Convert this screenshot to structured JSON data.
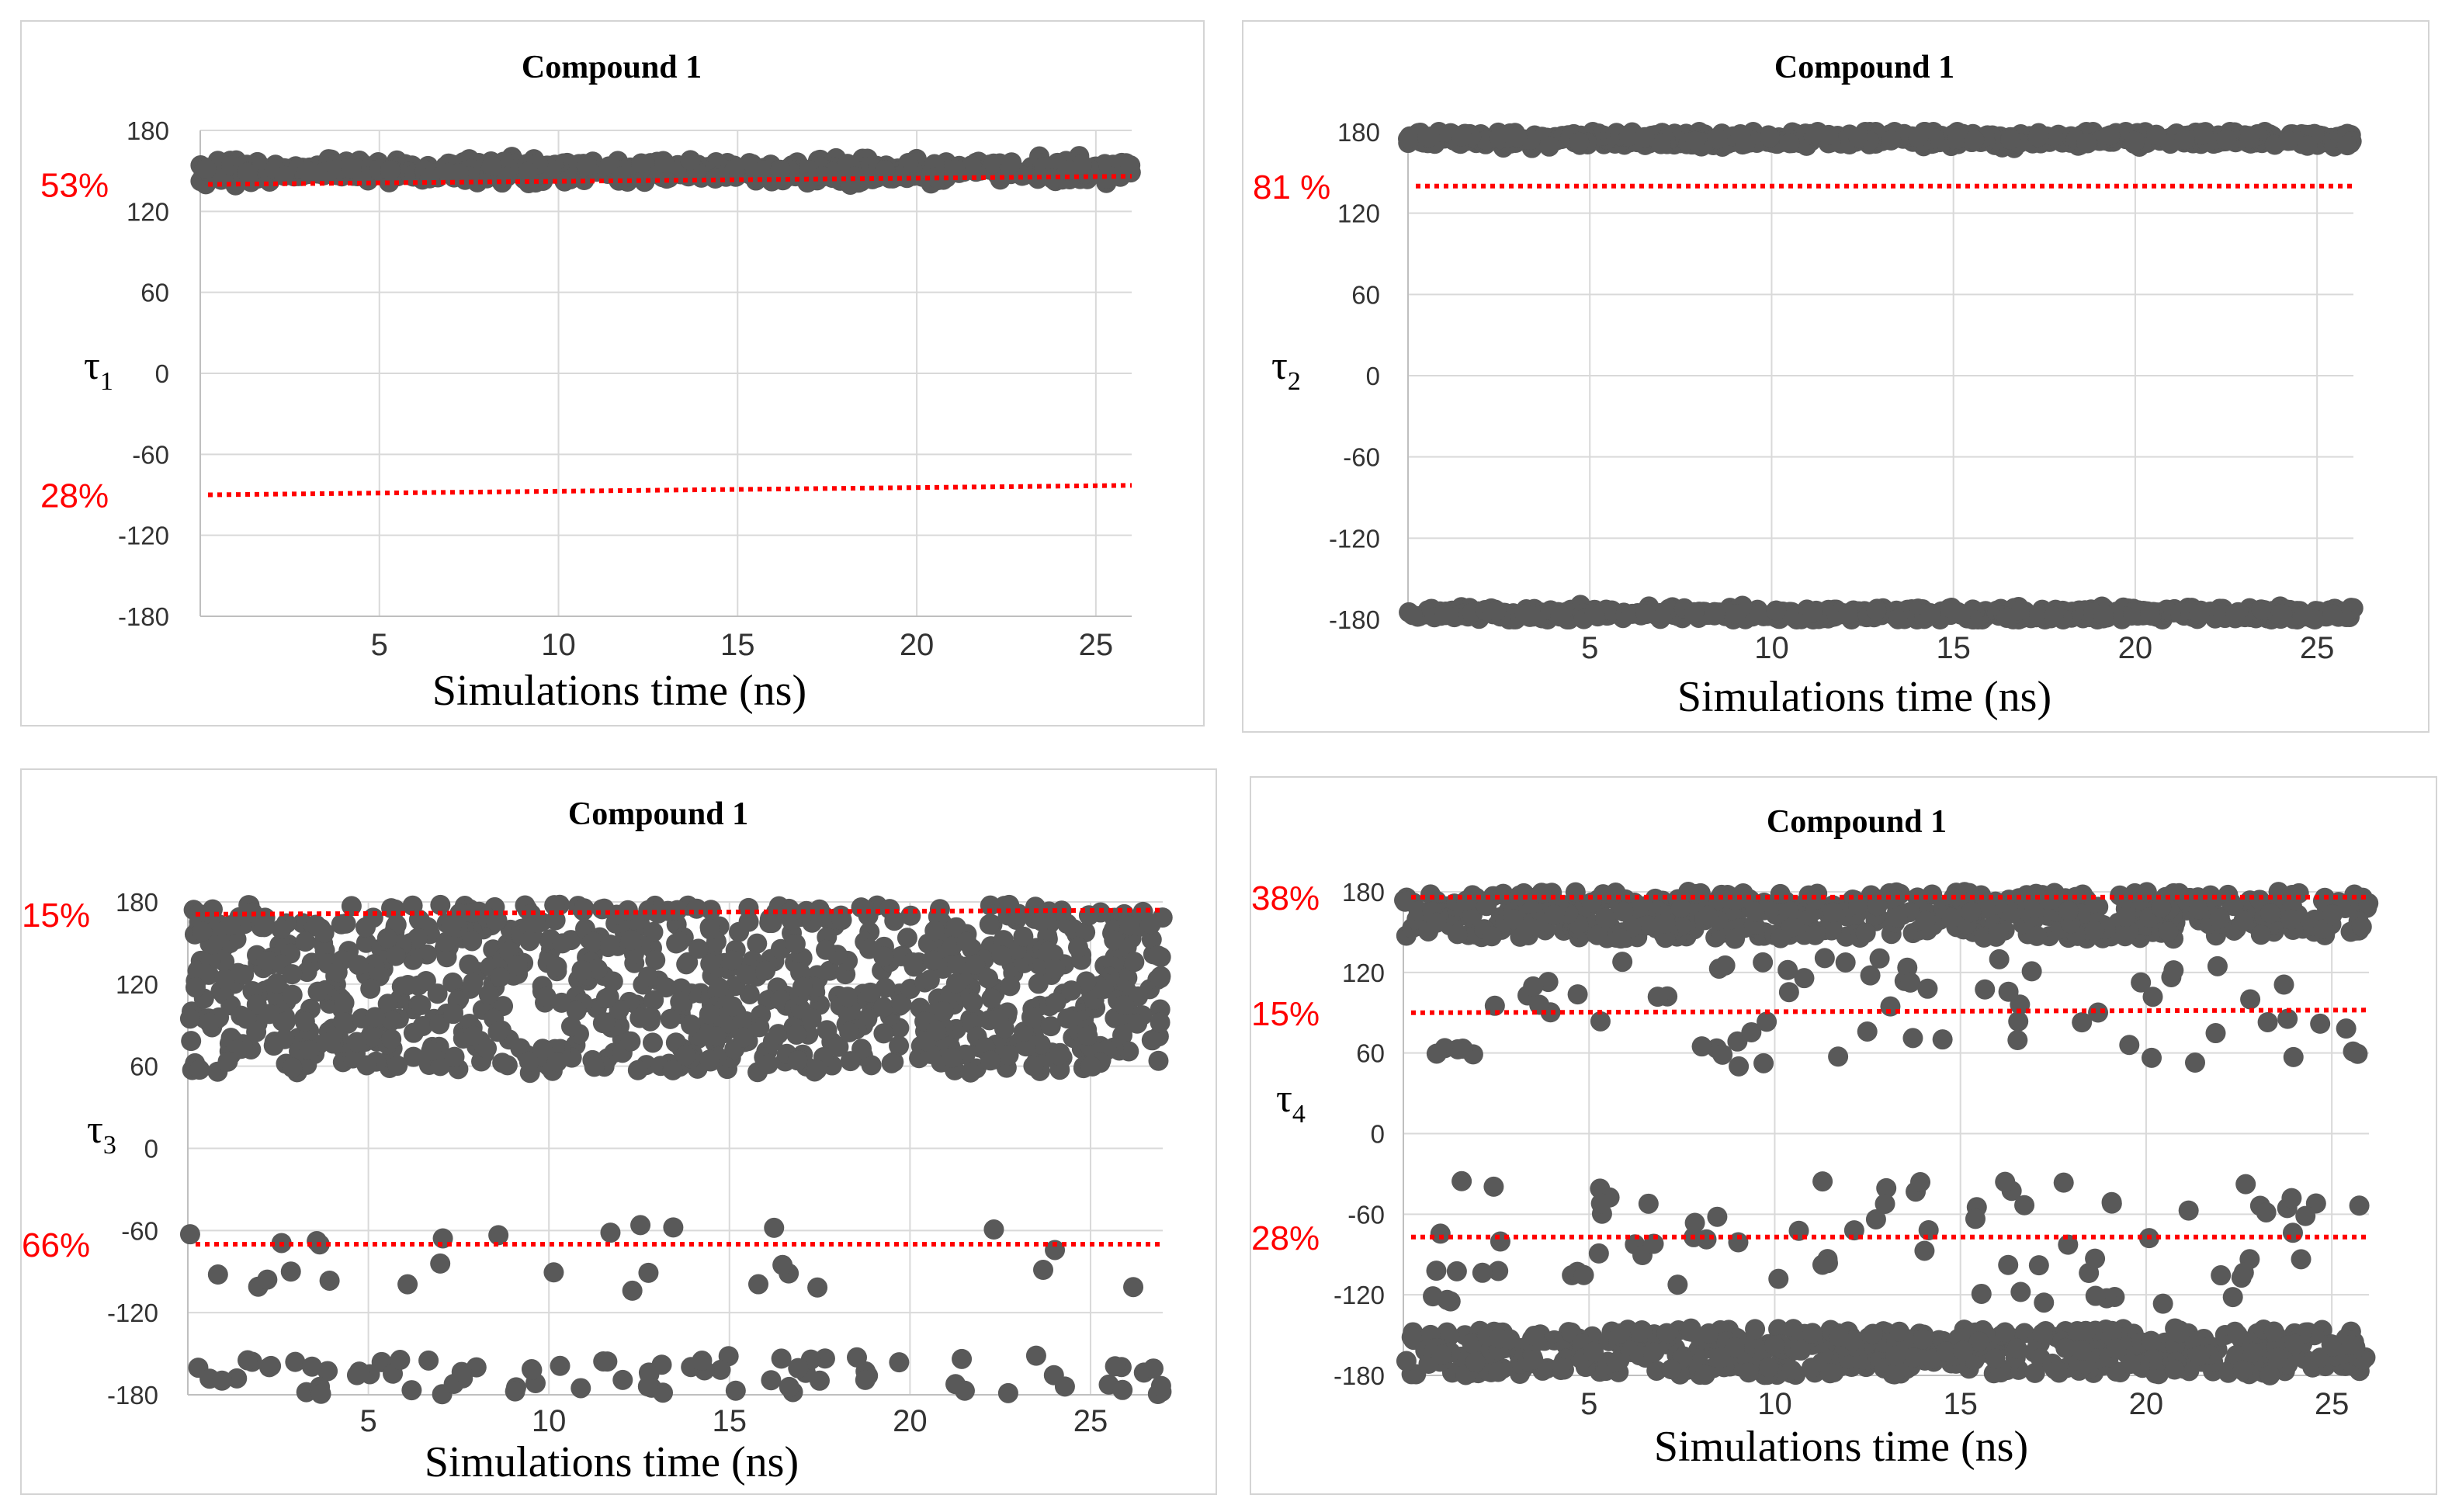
{
  "colors": {
    "points": "#595959",
    "reference": "#ff0000",
    "grid": "#d9d9d9",
    "frame": "#d4d4d4"
  },
  "chart_data": [
    {
      "type": "scatter",
      "title": "Compound 1",
      "xlabel": "Simulations time (ns)",
      "ylabel": {
        "base": "τ",
        "sub": "1"
      },
      "xlim": [
        0,
        26
      ],
      "ylim": [
        -180,
        180
      ],
      "xticks": [
        5,
        10,
        15,
        20,
        25
      ],
      "yticks": [
        180,
        120,
        60,
        0,
        -60,
        -120,
        -180
      ],
      "xtick_labels": [
        "5",
        "10",
        "15",
        "20",
        "25"
      ],
      "ytick_labels": [
        "180",
        "120",
        "60",
        "0",
        "-60",
        "-120",
        "-180"
      ],
      "reference_lines": [
        {
          "label": "53%",
          "y_start": 140,
          "y_end": 146
        },
        {
          "label": "28%",
          "y_start": -90,
          "y_end": -83
        }
      ],
      "clusters": [
        {
          "x_range": [
            0,
            26
          ],
          "y_center": 150,
          "y_spread": 12,
          "count": 600
        }
      ]
    },
    {
      "type": "scatter",
      "title": "Compound 1",
      "xlabel": "Simulations time (ns)",
      "ylabel": {
        "base": "τ",
        "sub": "2"
      },
      "xlim": [
        0,
        26
      ],
      "ylim": [
        -180,
        180
      ],
      "xticks": [
        5,
        10,
        15,
        20,
        25
      ],
      "yticks": [
        180,
        120,
        60,
        0,
        -60,
        -120,
        -180
      ],
      "xtick_labels": [
        "5",
        "10",
        "15",
        "20",
        "25"
      ],
      "ytick_labels": [
        "180",
        "120",
        "60",
        "0",
        "-60",
        "-120",
        "-180"
      ],
      "reference_lines": [
        {
          "label": "81 %",
          "y_start": 140,
          "y_end": 140
        }
      ],
      "clusters": [
        {
          "x_range": [
            0,
            26
          ],
          "y_center": 175,
          "y_spread": 8,
          "count": 600
        },
        {
          "x_range": [
            0,
            26
          ],
          "y_center": -176,
          "y_spread": 7,
          "count": 550
        }
      ]
    },
    {
      "type": "scatter",
      "title": "Compound 1",
      "xlabel": "Simulations time (ns)",
      "ylabel": {
        "base": "τ",
        "sub": "3"
      },
      "xlim": [
        0,
        27
      ],
      "ylim": [
        -180,
        180
      ],
      "xticks": [
        5,
        10,
        15,
        20,
        25
      ],
      "yticks": [
        180,
        120,
        60,
        0,
        -60,
        -120,
        -180
      ],
      "xtick_labels": [
        "5",
        "10",
        "15",
        "20",
        "25"
      ],
      "ytick_labels": [
        "180",
        "120",
        "60",
        "0",
        "-60",
        "-120",
        "-180"
      ],
      "reference_lines": [
        {
          "label": "15%",
          "y_start": 171,
          "y_end": 174
        },
        {
          "label": "66%",
          "y_start": -70,
          "y_end": -70
        }
      ],
      "clusters": [
        {
          "x_range": [
            0,
            27
          ],
          "y_min": 55,
          "y_max": 178,
          "count": 900
        },
        {
          "x_range": [
            0,
            27
          ],
          "y_min": -110,
          "y_max": -45,
          "count": 28
        },
        {
          "x_range": [
            0,
            27
          ],
          "y_min": -180,
          "y_max": -150,
          "count": 80
        }
      ]
    },
    {
      "type": "scatter",
      "title": "Compound 1",
      "xlabel": "Simulations time (ns)",
      "ylabel": {
        "base": "τ",
        "sub": "4"
      },
      "xlim": [
        0,
        26
      ],
      "ylim": [
        -180,
        180
      ],
      "xticks": [
        5,
        10,
        15,
        20,
        25
      ],
      "yticks": [
        180,
        120,
        60,
        0,
        -60,
        -120,
        -180
      ],
      "xtick_labels": [
        "5",
        "10",
        "15",
        "20",
        "25"
      ],
      "ytick_labels": [
        "180",
        "120",
        "60",
        "0",
        "-60",
        "-120",
        "-180"
      ],
      "reference_lines": [
        {
          "label": "38%",
          "y_start": 176,
          "y_end": 176
        },
        {
          "label": "15%",
          "y_start": 90,
          "y_end": 92
        },
        {
          "label": "28%",
          "y_start": -77,
          "y_end": -77
        }
      ],
      "clusters": [
        {
          "x_range": [
            0,
            26
          ],
          "y_min": 145,
          "y_max": 180,
          "count": 520
        },
        {
          "x_range": [
            0,
            26
          ],
          "y_min": 50,
          "y_max": 135,
          "count": 70
        },
        {
          "x_range": [
            0,
            26
          ],
          "y_min": -130,
          "y_max": -35,
          "count": 80
        },
        {
          "x_range": [
            0,
            26
          ],
          "y_min": -180,
          "y_max": -145,
          "count": 520
        }
      ]
    }
  ]
}
